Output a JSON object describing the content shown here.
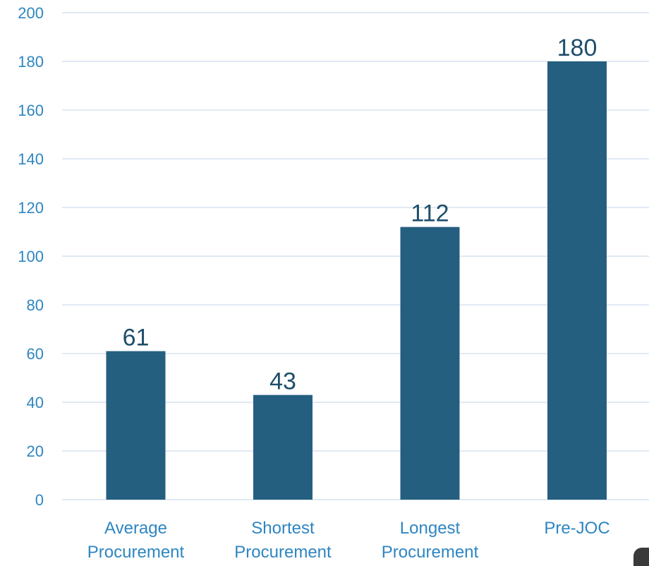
{
  "chart_data": {
    "type": "bar",
    "categories": [
      [
        "Average",
        "Procurement"
      ],
      [
        "Shortest",
        "Procurement"
      ],
      [
        "Longest",
        "Procurement"
      ],
      [
        "Pre-JOC"
      ]
    ],
    "values": [
      61,
      43,
      112,
      180
    ],
    "ylim": [
      0,
      200
    ],
    "yticks": [
      0,
      20,
      40,
      60,
      80,
      100,
      120,
      140,
      160,
      180,
      200
    ],
    "title": "",
    "xlabel": "",
    "ylabel": "",
    "grid": true,
    "legend": "none",
    "bar_color": "#255f80",
    "label_color": "#2e86c1",
    "data_label_color": "#1f4e6b",
    "grid_color": "#d6e4f0"
  }
}
